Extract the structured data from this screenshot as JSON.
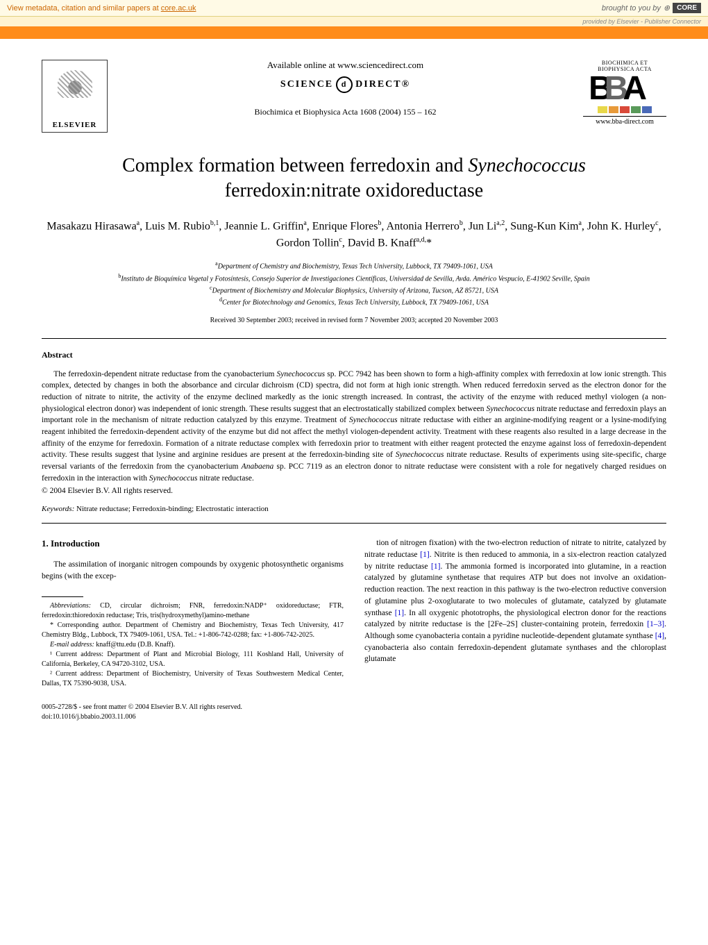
{
  "banner": {
    "metadata_text": "View metadata, citation and similar papers at ",
    "metadata_link": "core.ac.uk",
    "brought_by": "brought to you by",
    "core_label": "CORE",
    "provided_by": "provided by Elsevier - Publisher Connector"
  },
  "header": {
    "elsevier": "ELSEVIER",
    "available_online": "Available online at www.sciencedirect.com",
    "science": "SCIENCE",
    "d": "d",
    "direct": "DIRECT®",
    "journal_ref": "Biochimica et Biophysica Acta 1608 (2004) 155 – 162",
    "bba_top": "BIOCHIMICA ET BIOPHYSICA ACTA",
    "bba_b1": "B",
    "bba_b2": "B",
    "bba_a": "A",
    "bba_url": "www.bba-direct.com",
    "bar_colors": [
      "#e8d84a",
      "#e89a3a",
      "#d94a3a",
      "#5a9a5a",
      "#4a6ab8"
    ]
  },
  "title": {
    "line1_pre": "Complex formation between ferredoxin and ",
    "line1_italic": "Synechococcus",
    "line2": "ferredoxin:nitrate oxidoreductase"
  },
  "authors_html": "Masakazu Hirasawa<sup>a</sup>, Luis M. Rubio<sup>b,1</sup>, Jeannie L. Griffin<sup>a</sup>, Enrique Flores<sup>b</sup>, Antonia Herrero<sup>b</sup>, Jun Li<sup>a,2</sup>, Sung-Kun Kim<sup>a</sup>, John K. Hurley<sup>c</sup>, Gordon Tollin<sup>c</sup>, David B. Knaff<sup>a,d,</sup>*",
  "affiliations": {
    "a": "Department of Chemistry and Biochemistry, Texas Tech University, Lubbock, TX 79409-1061, USA",
    "b": "Instituto de Bioquímica Vegetal y Fotosíntesis, Consejo Superior de Investigaciones Científicas, Universidad de Sevilla, Avda. Américo Vespucio, E-41902 Seville, Spain",
    "c": "Department of Biochemistry and Molecular Biophysics, University of Arizona, Tucson, AZ 85721, USA",
    "d": "Center for Biotechnology and Genomics, Texas Tech University, Lubbock, TX 79409-1061, USA"
  },
  "received": "Received 30 September 2003; received in revised form 7 November 2003; accepted 20 November 2003",
  "abstract": {
    "heading": "Abstract",
    "body_parts": [
      "The ferredoxin-dependent nitrate reductase from the cyanobacterium ",
      "Synechococcus",
      " sp. PCC 7942 has been shown to form a high-affinity complex with ferredoxin at low ionic strength. This complex, detected by changes in both the absorbance and circular dichroism (CD) spectra, did not form at high ionic strength. When reduced ferredoxin served as the electron donor for the reduction of nitrate to nitrite, the activity of the enzyme declined markedly as the ionic strength increased. In contrast, the activity of the enzyme with reduced methyl viologen (a non-physiological electron donor) was independent of ionic strength. These results suggest that an electrostatically stabilized complex between ",
      "Synechococcus",
      " nitrate reductase and ferredoxin plays an important role in the mechanism of nitrate reduction catalyzed by this enzyme. Treatment of ",
      "Synechococcus",
      " nitrate reductase with either an arginine-modifying reagent or a lysine-modifying reagent inhibited the ferredoxin-dependent activity of the enzyme but did not affect the methyl viologen-dependent activity. Treatment with these reagents also resulted in a large decrease in the affinity of the enzyme for ferredoxin. Formation of a nitrate reductase complex with ferredoxin prior to treatment with either reagent protected the enzyme against loss of ferredoxin-dependent activity. These results suggest that lysine and arginine residues are present at the ferredoxin-binding site of ",
      "Synechococcus",
      " nitrate reductase. Results of experiments using site-specific, charge reversal variants of the ferredoxin from the cyanobacterium ",
      "Anabaena",
      " sp. PCC 7119 as an electron donor to nitrate reductase were consistent with a role for negatively charged residues on ferredoxin in the interaction with ",
      "Synechococcus",
      " nitrate reductase."
    ],
    "copyright": "© 2004 Elsevier B.V. All rights reserved."
  },
  "keywords": {
    "label": "Keywords:",
    "text": " Nitrate reductase; Ferredoxin-binding; Electrostatic interaction"
  },
  "intro": {
    "heading": "1. Introduction",
    "left": "The assimilation of inorganic nitrogen compounds by oxygenic photosynthetic organisms begins (with the excep-",
    "right_parts": [
      "tion of nitrogen fixation) with the two-electron reduction of nitrate to nitrite, catalyzed by nitrate reductase ",
      "[1]",
      ". Nitrite is then reduced to ammonia, in a six-electron reaction catalyzed by nitrite reductase ",
      "[1]",
      ". The ammonia formed is incorporated into glutamine, in a reaction catalyzed by glutamine synthetase that requires ATP but does not involve an oxidation-reduction reaction. The next reaction in this pathway is the two-electron reductive conversion of glutamine plus 2-oxoglutarate to two molecules of glutamate, catalyzed by glutamate synthase ",
      "[1]",
      ". In all oxygenic phototrophs, the physiological electron donor for the reactions catalyzed by nitrite reductase is the [2Fe–2S] cluster-containing protein, ferredoxin ",
      "[1–3]",
      ". Although some cyanobacteria contain a pyridine nucleotide-dependent glutamate synthase ",
      "[4]",
      ", cyanobacteria also contain ferredoxin-dependent glutamate synthases and the chloroplast glutamate"
    ]
  },
  "footnotes": {
    "abbrev_label": "Abbreviations:",
    "abbrev_text": " CD, circular dichroism; FNR, ferredoxin:NADP⁺ oxidoreductase; FTR, ferredoxin:thioredoxin reductase; Tris, tris(hydroxymethyl)amino-methane",
    "corresp": "* Corresponding author. Department of Chemistry and Biochemistry, Texas Tech University, 417 Chemistry Bldg., Lubbock, TX 79409-1061, USA. Tel.: +1-806-742-0288; fax: +1-806-742-2025.",
    "email_label": "E-mail address:",
    "email": " knaff@ttu.edu (D.B. Knaff).",
    "fn1": "¹ Current address: Department of Plant and Microbial Biology, 111 Koshland Hall, University of California, Berkeley, CA 94720-3102, USA.",
    "fn2": "² Current address: Department of Biochemistry, University of Texas Southwestern Medical Center, Dallas, TX 75390-9038, USA."
  },
  "footer": {
    "line1": "0005-2728/$ - see front matter © 2004 Elsevier B.V. All rights reserved.",
    "line2": "doi:10.1016/j.bbabio.2003.11.006"
  }
}
